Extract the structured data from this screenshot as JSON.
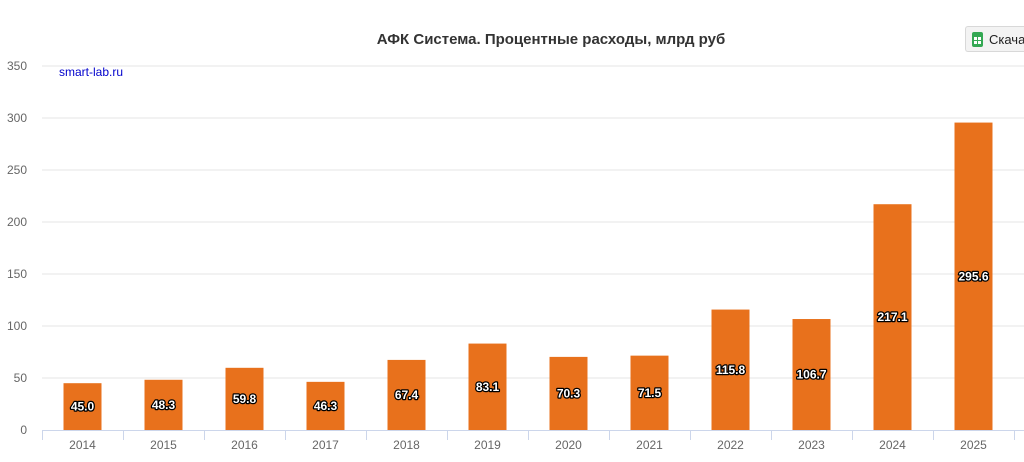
{
  "download_button": {
    "label": "Скача",
    "icon": "spreadsheet-icon"
  },
  "chart_data": {
    "type": "bar",
    "title": "АФК Система. Процентные расходы, млрд руб",
    "credit": "smart-lab.ru",
    "categories": [
      "2014",
      "2015",
      "2016",
      "2017",
      "2018",
      "2019",
      "2020",
      "2021",
      "2022",
      "2023",
      "2024",
      "2025"
    ],
    "values": [
      45.0,
      48.3,
      59.8,
      46.3,
      67.4,
      83.1,
      70.3,
      71.5,
      115.8,
      106.7,
      217.1,
      295.6
    ],
    "data_labels": [
      "45.0",
      "48.3",
      "59.8",
      "46.3",
      "67.4",
      "83.1",
      "70.3",
      "71.5",
      "115.8",
      "106.7",
      "217.1",
      "295.6"
    ],
    "yticks": [
      "0",
      "50",
      "100",
      "150",
      "200",
      "250",
      "300",
      "350"
    ],
    "ylim": [
      0,
      350
    ],
    "bar_color": "#e8711c",
    "grid": true,
    "legend": false
  }
}
